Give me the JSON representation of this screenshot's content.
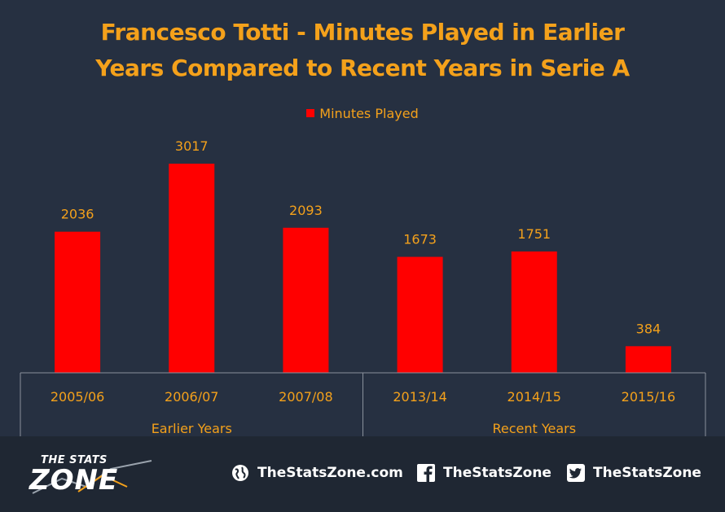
{
  "chart_data": {
    "type": "bar",
    "title_lines": [
      "Francesco Totti - Minutes Played in Earlier",
      "Years Compared to Recent Years in Serie A"
    ],
    "legend": [
      {
        "name": "Minutes Played",
        "color": "#ff0000"
      }
    ],
    "categories": [
      "2005/06",
      "2006/07",
      "2007/08",
      "2013/14",
      "2014/15",
      "2015/16"
    ],
    "groups": [
      {
        "label": "Earlier Years",
        "categories": [
          "2005/06",
          "2006/07",
          "2007/08"
        ]
      },
      {
        "label": "Recent Years",
        "categories": [
          "2013/14",
          "2014/15",
          "2015/16"
        ]
      }
    ],
    "series": [
      {
        "name": "Minutes Played",
        "values": [
          2036,
          3017,
          2093,
          1673,
          1751,
          384
        ],
        "color": "#ff0000"
      }
    ],
    "data_labels": true,
    "ylim": [
      0,
      3500
    ],
    "grid": false
  },
  "colors": {
    "background": "#263041",
    "footer": "#1f2733",
    "accent": "#f4a11b",
    "bar": "#ff0000",
    "axis": "#8a919c"
  },
  "footer": {
    "logo_line1": "THE STATS",
    "logo_line2": "ZONE",
    "website": {
      "icon": "globe-icon",
      "text": "TheStatsZone.com"
    },
    "facebook": {
      "icon": "facebook-icon",
      "text": "TheStatsZone"
    },
    "twitter": {
      "icon": "twitter-icon",
      "text": "TheStatsZone"
    }
  }
}
